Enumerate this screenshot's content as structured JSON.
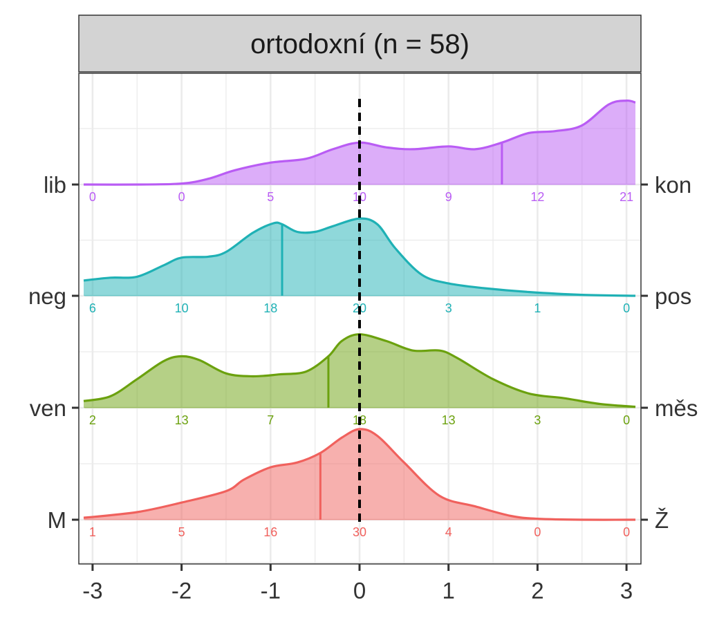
{
  "chart_data": {
    "type": "ridgeline",
    "title": "ortodoxní (n = 58)",
    "xlabel": "",
    "ylabel": "",
    "xlim": [
      -3.1,
      3.1
    ],
    "x_ticks": [
      -3,
      -2,
      -1,
      0,
      1,
      2,
      3
    ],
    "x_tick_labels": [
      "-3",
      "-2",
      "-1",
      "0",
      "1",
      "2",
      "3"
    ],
    "reference_line_x": 0,
    "reference_line_style": "dashed",
    "grid": true,
    "legend": "none",
    "count_positions": [
      -3,
      -2,
      -1,
      0,
      1,
      2,
      3
    ],
    "series": [
      {
        "left_label": "M",
        "right_label": "Ž",
        "color": "#F0615D",
        "mean": -0.44,
        "counts": [
          "1",
          "5",
          "16",
          "30",
          "4",
          "0",
          "0"
        ],
        "density_x": [
          -3.1,
          -2.5,
          -2.0,
          -1.5,
          -1.3,
          -1.0,
          -0.7,
          -0.44,
          -0.2,
          0.0,
          0.2,
          0.5,
          0.9,
          1.3,
          1.7,
          2.0,
          2.5,
          3.1
        ],
        "density_y": [
          0.02,
          0.08,
          0.18,
          0.3,
          0.42,
          0.55,
          0.6,
          0.7,
          0.86,
          0.95,
          0.88,
          0.6,
          0.25,
          0.14,
          0.04,
          0.01,
          0.0,
          0.0
        ]
      },
      {
        "left_label": "ven",
        "right_label": "měs",
        "color": "#6BA10E",
        "mean": -0.35,
        "counts": [
          "2",
          "13",
          "7",
          "18",
          "13",
          "3",
          "0"
        ],
        "density_x": [
          -3.1,
          -2.8,
          -2.5,
          -2.2,
          -2.0,
          -1.8,
          -1.5,
          -1.2,
          -0.9,
          -0.6,
          -0.35,
          -0.2,
          0.0,
          0.3,
          0.6,
          0.9,
          1.1,
          1.5,
          1.9,
          2.3,
          2.7,
          3.1
        ],
        "density_y": [
          0.07,
          0.12,
          0.3,
          0.49,
          0.54,
          0.5,
          0.36,
          0.33,
          0.35,
          0.38,
          0.54,
          0.7,
          0.77,
          0.7,
          0.6,
          0.6,
          0.52,
          0.3,
          0.15,
          0.1,
          0.04,
          0.01
        ]
      },
      {
        "left_label": "neg",
        "right_label": "pos",
        "color": "#1FB1B5",
        "mean": -0.87,
        "counts": [
          "6",
          "10",
          "18",
          "20",
          "3",
          "1",
          "0"
        ],
        "density_x": [
          -3.1,
          -2.8,
          -2.5,
          -2.2,
          -2.0,
          -1.7,
          -1.5,
          -1.2,
          -0.97,
          -0.87,
          -0.7,
          -0.5,
          -0.3,
          0.0,
          0.2,
          0.4,
          0.7,
          1.0,
          1.4,
          1.9,
          2.5,
          3.1
        ],
        "density_y": [
          0.16,
          0.19,
          0.2,
          0.32,
          0.4,
          0.41,
          0.46,
          0.66,
          0.76,
          0.75,
          0.67,
          0.67,
          0.73,
          0.81,
          0.75,
          0.5,
          0.22,
          0.13,
          0.08,
          0.04,
          0.01,
          0.0
        ]
      },
      {
        "left_label": "lib",
        "right_label": "kon",
        "color": "#B95CF4",
        "mean": 1.6,
        "counts": [
          "0",
          "0",
          "5",
          "10",
          "9",
          "12",
          "21"
        ],
        "density_x": [
          -3.1,
          -2.5,
          -2.0,
          -1.7,
          -1.4,
          -1.0,
          -0.6,
          -0.3,
          0.0,
          0.3,
          0.6,
          1.0,
          1.3,
          1.6,
          1.9,
          2.2,
          2.5,
          2.8,
          3.0,
          3.1
        ],
        "density_y": [
          0.0,
          0.0,
          0.01,
          0.06,
          0.15,
          0.23,
          0.27,
          0.37,
          0.44,
          0.39,
          0.37,
          0.4,
          0.37,
          0.44,
          0.54,
          0.56,
          0.62,
          0.84,
          0.88,
          0.86
        ]
      }
    ]
  }
}
